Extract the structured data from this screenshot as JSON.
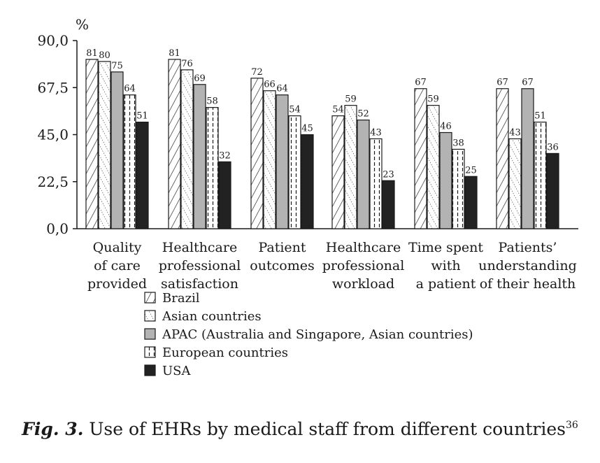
{
  "chart_data": {
    "type": "bar",
    "ylabel": "%",
    "ylim": [
      0,
      90
    ],
    "yticks": [
      "0,0",
      "22,5",
      "45,0",
      "67,5",
      "90,0"
    ],
    "categories": [
      [
        "Quality",
        "of care",
        "provided"
      ],
      [
        "Healthcare",
        "professional",
        "satisfaction"
      ],
      [
        "Patient",
        "outcomes"
      ],
      [
        "Healthcare",
        "professional",
        "workload"
      ],
      [
        "Time spent",
        "with",
        "a patient"
      ],
      [
        "Patients’",
        "understanding",
        "of their health"
      ]
    ],
    "series": [
      {
        "name": "Brazil",
        "values": [
          81,
          81,
          72,
          54,
          67,
          67
        ],
        "pattern": "diag-lines"
      },
      {
        "name": "Asian countries",
        "values": [
          80,
          76,
          66,
          59,
          59,
          43
        ],
        "pattern": "diag-dots"
      },
      {
        "name": "APAC (Australia and Singapore, Asian countries)",
        "values": [
          75,
          69,
          64,
          52,
          46,
          67
        ],
        "pattern": "gray"
      },
      {
        "name": "European countries",
        "values": [
          64,
          58,
          54,
          43,
          38,
          51
        ],
        "pattern": "vert-dashes"
      },
      {
        "name": "USA",
        "values": [
          51,
          32,
          45,
          23,
          25,
          36
        ],
        "pattern": "black"
      }
    ],
    "colors": {
      "gray": "#b3b3b3",
      "black": "#222222",
      "line": "#1a1a1a"
    }
  },
  "caption": {
    "label": "Fig. 3.",
    "text": " Use of EHRs by medical staff from different countries",
    "ref": "36"
  }
}
